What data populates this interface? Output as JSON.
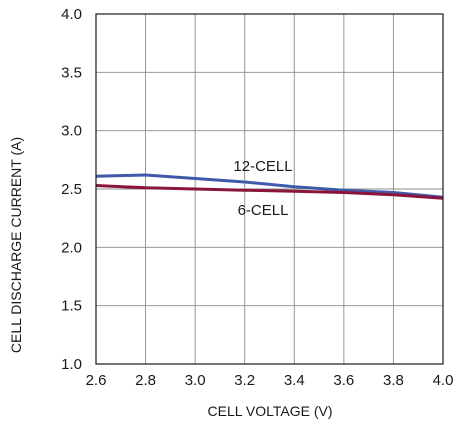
{
  "chart_data": {
    "type": "line",
    "title": "",
    "xlabel": "CELL VOLTAGE (V)",
    "ylabel": "CELL DISCHARGE CURRENT (A)",
    "xlim": [
      2.6,
      4.0
    ],
    "ylim": [
      1.0,
      4.0
    ],
    "xticks": [
      "2.6",
      "2.8",
      "3.0",
      "3.2",
      "3.4",
      "3.6",
      "3.8",
      "4.0"
    ],
    "yticks": [
      "1.0",
      "1.5",
      "2.0",
      "2.5",
      "3.0",
      "3.5",
      "4.0"
    ],
    "grid": true,
    "legend": "none",
    "series": [
      {
        "name": "12-CELL",
        "color": "#3f5aa8",
        "x": [
          2.6,
          2.8,
          3.0,
          3.2,
          3.4,
          3.6,
          3.8,
          4.0
        ],
        "y": [
          2.61,
          2.62,
          2.59,
          2.56,
          2.52,
          2.49,
          2.47,
          2.43
        ]
      },
      {
        "name": "6-CELL",
        "color": "#8a1538",
        "x": [
          2.6,
          2.8,
          3.0,
          3.2,
          3.4,
          3.6,
          3.8,
          4.0
        ],
        "y": [
          2.53,
          2.51,
          2.5,
          2.49,
          2.48,
          2.47,
          2.45,
          2.42
        ]
      }
    ]
  }
}
